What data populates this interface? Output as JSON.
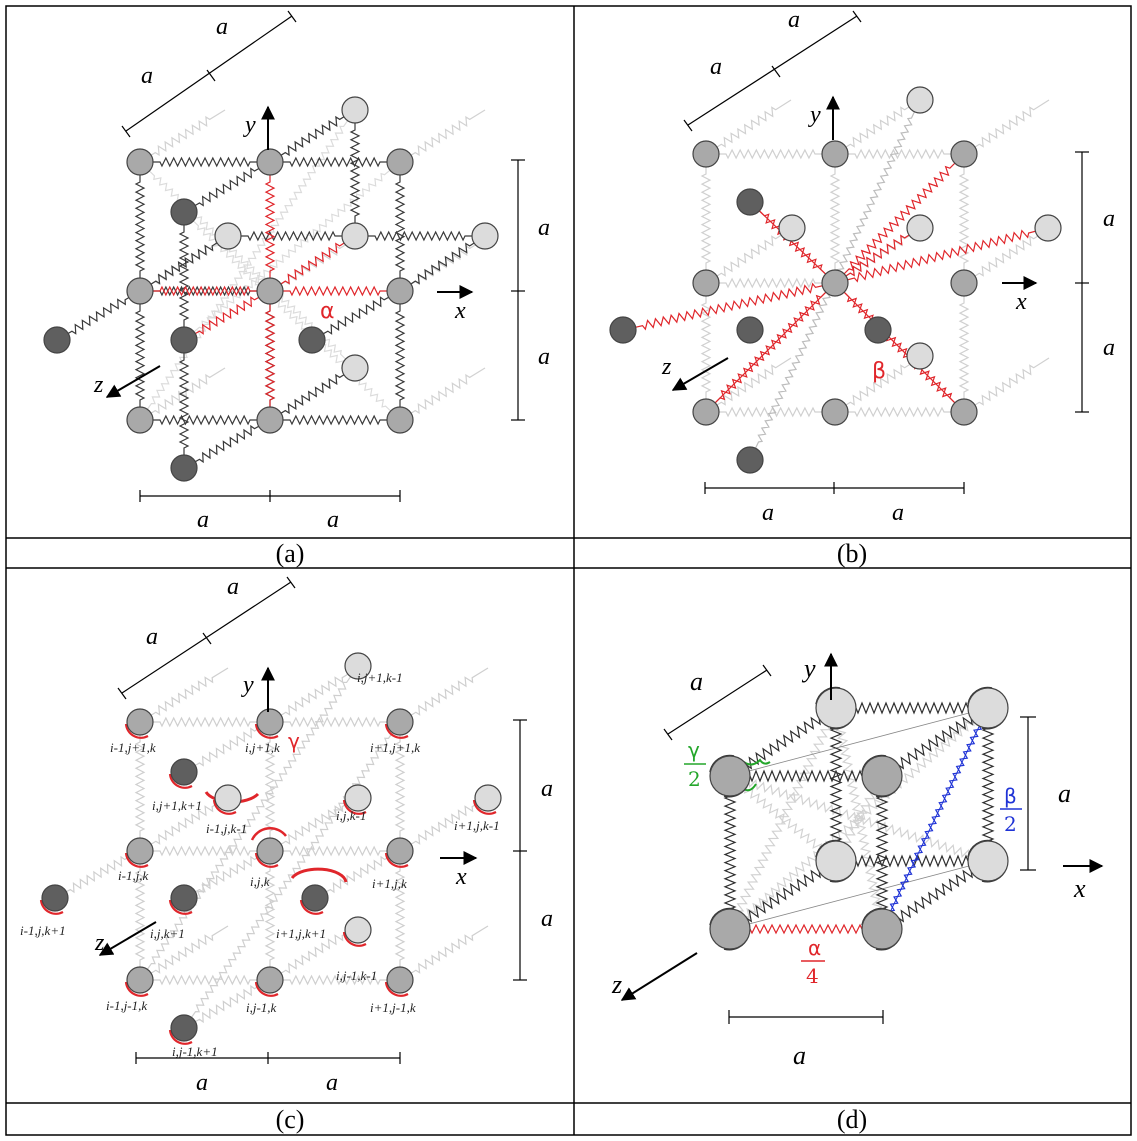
{
  "panels": {
    "a": {
      "caption": "(a)",
      "spring_label": "α"
    },
    "b": {
      "caption": "(b)",
      "spring_label": "β"
    },
    "c": {
      "caption": "(c)",
      "spring_label": "γ"
    },
    "d": {
      "caption": "(d)",
      "alpha_num": "α",
      "alpha_den": "4",
      "beta_num": "β",
      "beta_den": "2",
      "gamma_num": "γ",
      "gamma_den": "2"
    }
  },
  "axes": {
    "x": "x",
    "y": "y",
    "z": "z"
  },
  "dimension": "a",
  "node_labels": [
    "i,j+1,k-1",
    "i-1,j+1,k",
    "i,j+1,k",
    "i+1,j+1,k",
    "i,j+1,k+1",
    "i-1,j,k-1",
    "i,j,k-1",
    "i+1,j,k-1",
    "i-1,j,k",
    "i,j,k",
    "i+1,j,k",
    "i-1,j,k+1",
    "i,j,k+1",
    "i+1,j,k+1",
    "i,j-1,k-1",
    "i-1,j-1,k",
    "i,j-1,k",
    "i+1,j-1,k",
    "i,j-1,k+1"
  ],
  "colors": {
    "alpha": "#e0262b",
    "beta": "#1f33d6",
    "gamma": "#23a62a",
    "node_dark": "#5f5f5f",
    "node_mid": "#a9a9a9",
    "node_light": "#dcdcdc"
  }
}
